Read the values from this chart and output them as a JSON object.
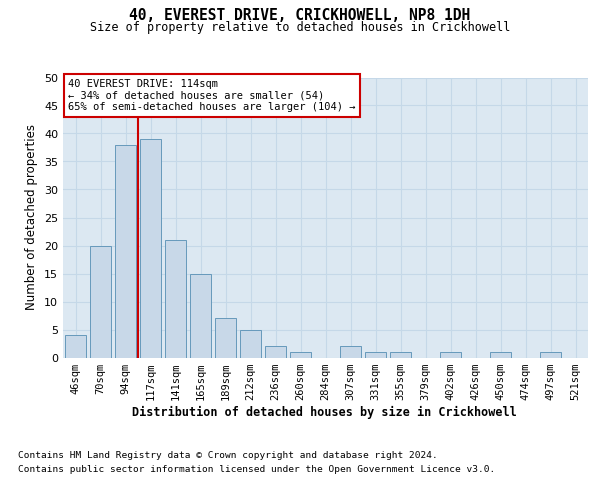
{
  "title1": "40, EVEREST DRIVE, CRICKHOWELL, NP8 1DH",
  "title2": "Size of property relative to detached houses in Crickhowell",
  "xlabel": "Distribution of detached houses by size in Crickhowell",
  "ylabel": "Number of detached properties",
  "categories": [
    "46sqm",
    "70sqm",
    "94sqm",
    "117sqm",
    "141sqm",
    "165sqm",
    "189sqm",
    "212sqm",
    "236sqm",
    "260sqm",
    "284sqm",
    "307sqm",
    "331sqm",
    "355sqm",
    "379sqm",
    "402sqm",
    "426sqm",
    "450sqm",
    "474sqm",
    "497sqm",
    "521sqm"
  ],
  "values": [
    4,
    20,
    38,
    39,
    21,
    15,
    7,
    5,
    2,
    1,
    0,
    2,
    1,
    1,
    0,
    1,
    0,
    1,
    0,
    1,
    0
  ],
  "bar_color": "#c8d8e8",
  "bar_edge_color": "#6699bb",
  "vline_x": 2.5,
  "vline_color": "#cc0000",
  "annotation_line1": "40 EVEREST DRIVE: 114sqm",
  "annotation_line2": "← 34% of detached houses are smaller (54)",
  "annotation_line3": "65% of semi-detached houses are larger (104) →",
  "annotation_box_facecolor": "#ffffff",
  "annotation_box_edgecolor": "#cc0000",
  "ylim": [
    0,
    50
  ],
  "yticks": [
    0,
    5,
    10,
    15,
    20,
    25,
    30,
    35,
    40,
    45,
    50
  ],
  "grid_color": "#c5d8e8",
  "plot_bg_color": "#dce8f2",
  "footer_line1": "Contains HM Land Registry data © Crown copyright and database right 2024.",
  "footer_line2": "Contains public sector information licensed under the Open Government Licence v3.0."
}
